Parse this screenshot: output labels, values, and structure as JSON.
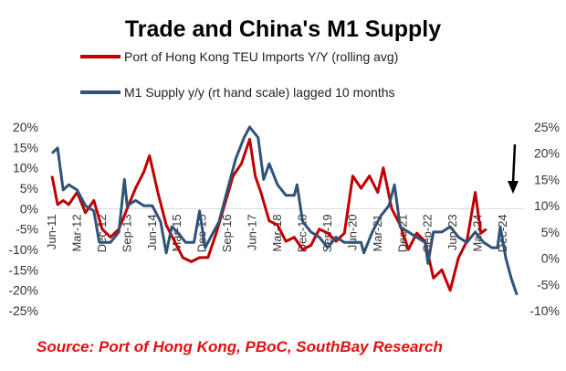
{
  "chart_data": {
    "type": "line",
    "title": "Trade and China's M1 Supply",
    "source": "Source: Port of Hong Kong, PBoC, SouthBay Research",
    "left_axis": {
      "ticks": [
        "20%",
        "15%",
        "10%",
        "5%",
        "0%",
        "-5%",
        "-10%",
        "-15%",
        "-20%",
        "-25%"
      ],
      "range": [
        -25,
        20
      ]
    },
    "right_axis": {
      "ticks": [
        "25%",
        "20%",
        "15%",
        "10%",
        "5%",
        "0%",
        "-5%",
        "-10%"
      ],
      "range": [
        -10,
        25
      ]
    },
    "x_ticks": [
      "Jun-11",
      "Mar-12",
      "Dec-12",
      "Sep-13",
      "Jun-14",
      "Mar-15",
      "Dec-15",
      "Sep-16",
      "Jun-17",
      "Mar-18",
      "Dec-18",
      "Sep-19",
      "Jun-20",
      "Mar-21",
      "Dec-21",
      "Sep-22",
      "Jun-23",
      "Mar-24",
      "Dec-24"
    ],
    "series": [
      {
        "name": "Port of Hong Kong TEU Imports Y/Y (rolling avg)",
        "axis": "left",
        "color": "#c00000",
        "x": [
          "2011-06",
          "2011-08",
          "2011-10",
          "2011-12",
          "2012-02",
          "2012-03",
          "2012-06",
          "2012-09",
          "2012-12",
          "2013-03",
          "2013-06",
          "2013-09",
          "2013-12",
          "2014-03",
          "2014-05",
          "2014-08",
          "2014-11",
          "2015-02",
          "2015-05",
          "2015-08",
          "2015-11",
          "2016-02",
          "2016-05",
          "2016-08",
          "2016-11",
          "2017-02",
          "2017-05",
          "2017-07",
          "2017-09",
          "2017-12",
          "2018-03",
          "2018-06",
          "2018-09",
          "2018-12",
          "2019-03",
          "2019-06",
          "2019-09",
          "2019-12",
          "2020-03",
          "2020-06",
          "2020-09",
          "2020-12",
          "2021-03",
          "2021-05",
          "2021-08",
          "2021-11",
          "2022-02",
          "2022-05",
          "2022-08",
          "2022-11",
          "2023-02",
          "2023-05",
          "2023-08",
          "2023-11",
          "2024-02",
          "2024-04",
          "2024-06"
        ],
        "values": [
          8,
          1,
          2,
          1,
          3,
          4,
          -1,
          2,
          -5,
          -7,
          -5,
          0,
          5,
          9,
          13,
          4,
          -4,
          -8,
          -12,
          -13,
          -12,
          -12,
          -6,
          1,
          8,
          11,
          17,
          8,
          4,
          -3,
          -4,
          -8,
          -7,
          -10,
          -9,
          -5,
          -6,
          -8,
          -6,
          8,
          5,
          8,
          4,
          10,
          0,
          -4,
          -10,
          -6,
          -8,
          -17,
          -15,
          -20,
          -12,
          -8,
          4,
          -6,
          -5
        ]
      },
      {
        "name": "M1 Supply y/y (rt hand scale) lagged 10 months",
        "axis": "right",
        "color": "#2f5279",
        "x": [
          "2011-06",
          "2011-08",
          "2011-10",
          "2011-12",
          "2012-03",
          "2012-06",
          "2012-09",
          "2012-11",
          "2013-03",
          "2013-06",
          "2013-08",
          "2013-09",
          "2013-12",
          "2014-03",
          "2014-06",
          "2014-09",
          "2014-11",
          "2015-01",
          "2015-03",
          "2015-06",
          "2015-09",
          "2015-11",
          "2016-01",
          "2016-03",
          "2016-06",
          "2016-09",
          "2016-12",
          "2017-03",
          "2017-05",
          "2017-08",
          "2017-10",
          "2017-12",
          "2018-03",
          "2018-06",
          "2018-09",
          "2018-10",
          "2018-12",
          "2019-03",
          "2019-06",
          "2019-09",
          "2019-12",
          "2020-03",
          "2020-06",
          "2020-09",
          "2020-10",
          "2021-01",
          "2021-04",
          "2021-07",
          "2021-09",
          "2021-11",
          "2022-02",
          "2022-05",
          "2022-08",
          "2022-09",
          "2022-11",
          "2023-02",
          "2023-05",
          "2023-08",
          "2023-11",
          "2024-02",
          "2024-05",
          "2024-08",
          "2024-10",
          "2024-11",
          "2025-01",
          "2025-03",
          "2025-05"
        ],
        "values": [
          20,
          21,
          13,
          14,
          13,
          10,
          9,
          3,
          3,
          5,
          15,
          10,
          11,
          10,
          10,
          7,
          1,
          6,
          5,
          3,
          3,
          9,
          2,
          4,
          7,
          13,
          19,
          23,
          25,
          23,
          15,
          18,
          14,
          12,
          12,
          14,
          7,
          5,
          4,
          2,
          4,
          3,
          3,
          3,
          1,
          5,
          8,
          10,
          14,
          6,
          5,
          4,
          3,
          -1,
          5,
          5,
          6,
          4,
          3,
          5,
          3,
          2,
          2,
          6,
          0,
          -4,
          -7
        ]
      }
    ],
    "annotation": "down-arrow"
  }
}
